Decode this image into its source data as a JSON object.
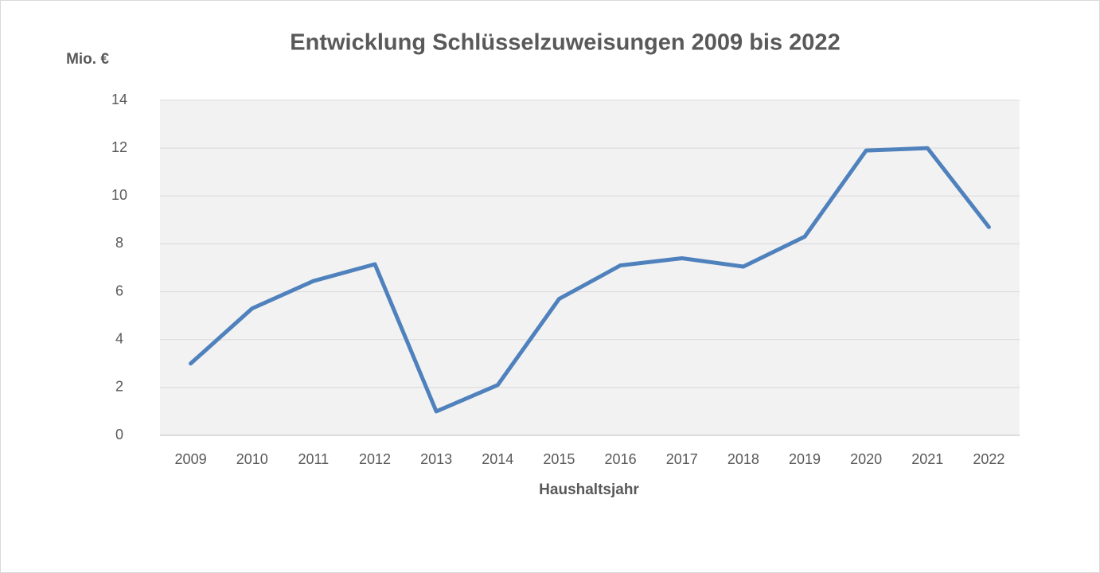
{
  "chart_data": {
    "type": "line",
    "title": "Entwicklung Schlüsselzuweisungen 2009 bis 2022",
    "y_label": "Mio. €",
    "x_label": "Haushaltsjahr",
    "categories": [
      "2009",
      "2010",
      "2011",
      "2012",
      "2013",
      "2014",
      "2015",
      "2016",
      "2017",
      "2018",
      "2019",
      "2020",
      "2021",
      "2022"
    ],
    "series": [
      {
        "name": "Schlüsselzuweisungen",
        "color": "#4f81bd",
        "values": [
          3.0,
          5.3,
          6.45,
          7.15,
          1.0,
          2.1,
          5.7,
          7.1,
          7.4,
          7.05,
          8.3,
          11.9,
          12.0,
          8.7
        ]
      }
    ],
    "ylim": [
      0,
      14
    ],
    "yticks": [
      0,
      2,
      4,
      6,
      8,
      10,
      12,
      14
    ],
    "grid": true
  }
}
